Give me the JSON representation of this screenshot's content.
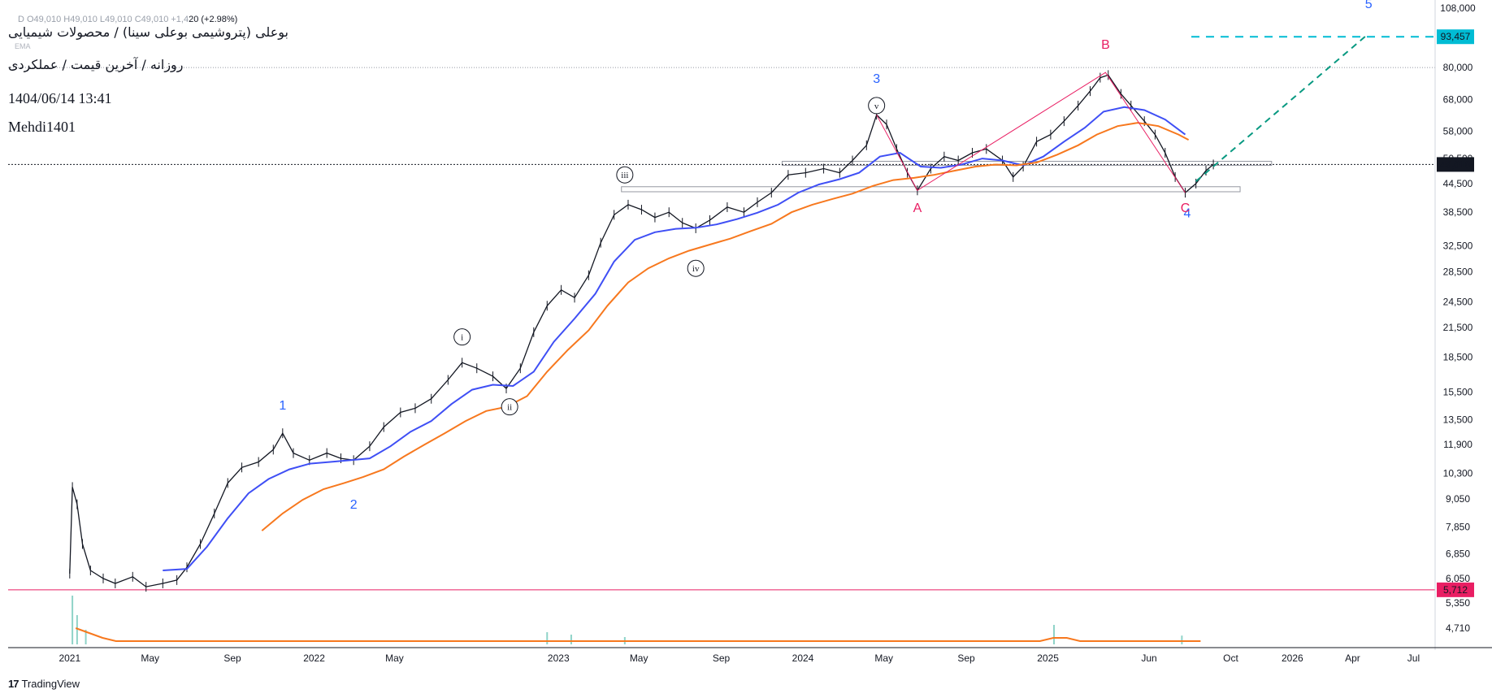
{
  "header": {
    "symbol_title": "بوعلی (پتروشیمی بوعلی سینا) / محصولات شیمیایی",
    "subtitle": "روزانه / آخرین قیمت / عملکردی",
    "ohlc": "D  O49,010  H49,010  L49,010  C49,010  +1,4",
    "change": "20 (+2.98%)",
    "ma_tag": "EMA",
    "timestamp": "1404/06/14 13:41",
    "author": "Mehdi1401"
  },
  "brand": {
    "logo_text": "17",
    "name": "TradingView"
  },
  "colors": {
    "background": "#ffffff",
    "price": "#131722",
    "ema_fast": "#3f4ff5",
    "ema_slow": "#f7781e",
    "wave_blue": "#2962ff",
    "wave_red": "#e91e63",
    "projection": "#089981",
    "target_tag": "#00bcd4",
    "hline_pink": "#e91e63"
  },
  "chart_data": {
    "type": "line",
    "y_scale": "log",
    "ylim": [
      4300,
      108000
    ],
    "price_scale_labels": [
      "108,000",
      "93,457",
      "80,000",
      "68,000",
      "58,000",
      "50,500",
      "49,010",
      "44,500",
      "38,500",
      "32,500",
      "28,500",
      "24,500",
      "21,500",
      "18,500",
      "15,500",
      "13,500",
      "11,900",
      "10,300",
      "9,050",
      "7,850",
      "6,850",
      "6,050",
      "5,712",
      "5,350",
      "4,710"
    ],
    "x_labels": [
      "2021",
      "May",
      "Sep",
      "2022",
      "May",
      "2023",
      "May",
      "Sep",
      "2024",
      "May",
      "Sep",
      "2025",
      "Jun",
      "Oct",
      "2026",
      "Apr",
      "Jul"
    ],
    "current_price": {
      "value": 49010,
      "label": "49,010"
    },
    "target_price": {
      "value": 93457,
      "label": "93,457"
    },
    "support_line": {
      "value": 5712,
      "label": "5,712"
    },
    "series": [
      {
        "name": "",
        "kind": "price",
        "points": [
          [
            "2021-01-01",
            6200
          ],
          [
            "2021-01-05",
            9600
          ],
          [
            "2021-01-12",
            8800
          ],
          [
            "2021-01-20",
            7200
          ],
          [
            "2021-02-01",
            6300
          ],
          [
            "2021-02-20",
            6050
          ],
          [
            "2021-03-10",
            5900
          ],
          [
            "2021-04-05",
            6100
          ],
          [
            "2021-04-25",
            5800
          ],
          [
            "2021-05-20",
            5900
          ],
          [
            "2021-06-10",
            6000
          ],
          [
            "2021-06-25",
            6400
          ],
          [
            "2021-07-15",
            7200
          ],
          [
            "2021-08-05",
            8400
          ],
          [
            "2021-08-25",
            9800
          ],
          [
            "2021-09-15",
            10600
          ],
          [
            "2021-10-10",
            10900
          ],
          [
            "2021-11-01",
            11600
          ],
          [
            "2021-11-15",
            12600
          ],
          [
            "2021-12-01",
            11400
          ],
          [
            "2021-12-25",
            11000
          ],
          [
            "2022-01-20",
            11400
          ],
          [
            "2022-02-10",
            11100
          ],
          [
            "2022-03-01",
            11000
          ],
          [
            "2022-03-25",
            11800
          ],
          [
            "2022-04-15",
            13000
          ],
          [
            "2022-05-10",
            14000
          ],
          [
            "2022-06-01",
            14300
          ],
          [
            "2022-06-25",
            15000
          ],
          [
            "2022-07-20",
            16500
          ],
          [
            "2022-08-10",
            18000
          ],
          [
            "2022-09-01",
            17500
          ],
          [
            "2022-09-25",
            16800
          ],
          [
            "2022-10-15",
            15800
          ],
          [
            "2022-11-05",
            17500
          ],
          [
            "2022-11-25",
            21000
          ],
          [
            "2022-12-15",
            24000
          ],
          [
            "2023-01-05",
            26000
          ],
          [
            "2023-01-25",
            25000
          ],
          [
            "2023-02-15",
            28000
          ],
          [
            "2023-03-05",
            33000
          ],
          [
            "2023-03-25",
            38000
          ],
          [
            "2023-04-15",
            40000
          ],
          [
            "2023-05-05",
            39000
          ],
          [
            "2023-05-25",
            37500
          ],
          [
            "2023-06-15",
            38500
          ],
          [
            "2023-07-05",
            36500
          ],
          [
            "2023-07-25",
            35500
          ],
          [
            "2023-08-15",
            37000
          ],
          [
            "2023-09-10",
            39500
          ],
          [
            "2023-10-05",
            38500
          ],
          [
            "2023-10-25",
            40500
          ],
          [
            "2023-11-15",
            42500
          ],
          [
            "2023-12-10",
            46500
          ],
          [
            "2024-01-05",
            47000
          ],
          [
            "2024-02-01",
            48000
          ],
          [
            "2024-02-25",
            47000
          ],
          [
            "2024-03-15",
            50000
          ],
          [
            "2024-04-05",
            54000
          ],
          [
            "2024-04-20",
            63000
          ],
          [
            "2024-05-05",
            60000
          ],
          [
            "2024-05-20",
            53000
          ],
          [
            "2024-06-05",
            47000
          ],
          [
            "2024-06-20",
            43000
          ],
          [
            "2024-07-10",
            48000
          ],
          [
            "2024-07-30",
            51000
          ],
          [
            "2024-08-20",
            50000
          ],
          [
            "2024-09-10",
            52000
          ],
          [
            "2024-10-01",
            53000
          ],
          [
            "2024-10-25",
            50000
          ],
          [
            "2024-11-10",
            46000
          ],
          [
            "2024-11-25",
            48500
          ],
          [
            "2024-12-15",
            55000
          ],
          [
            "2025-01-05",
            57000
          ],
          [
            "2025-01-25",
            61000
          ],
          [
            "2025-02-15",
            66000
          ],
          [
            "2025-03-05",
            71000
          ],
          [
            "2025-03-20",
            76000
          ],
          [
            "2025-04-01",
            77000
          ],
          [
            "2025-04-20",
            70000
          ],
          [
            "2025-05-05",
            66000
          ],
          [
            "2025-05-25",
            61000
          ],
          [
            "2025-06-10",
            57000
          ],
          [
            "2025-06-25",
            52000
          ],
          [
            "2025-07-10",
            46000
          ],
          [
            "2025-07-25",
            42500
          ],
          [
            "2025-08-10",
            44500
          ],
          [
            "2025-08-25",
            47500
          ],
          [
            "2025-09-05",
            49010
          ]
        ]
      },
      {
        "name": "",
        "kind": "ema_fast",
        "points": [
          [
            "2021-05-20",
            6300
          ],
          [
            "2021-06-25",
            6350
          ],
          [
            "2021-07-25",
            7100
          ],
          [
            "2021-08-25",
            8200
          ],
          [
            "2021-09-25",
            9300
          ],
          [
            "2021-10-25",
            10000
          ],
          [
            "2021-11-25",
            10500
          ],
          [
            "2021-12-25",
            10800
          ],
          [
            "2022-01-25",
            10900
          ],
          [
            "2022-02-25",
            11000
          ],
          [
            "2022-03-25",
            11100
          ],
          [
            "2022-04-25",
            11800
          ],
          [
            "2022-05-25",
            12700
          ],
          [
            "2022-06-25",
            13400
          ],
          [
            "2022-07-25",
            14600
          ],
          [
            "2022-08-25",
            15700
          ],
          [
            "2022-09-25",
            16100
          ],
          [
            "2022-10-25",
            16000
          ],
          [
            "2022-11-25",
            17200
          ],
          [
            "2022-12-25",
            20000
          ],
          [
            "2023-01-25",
            22500
          ],
          [
            "2023-02-25",
            25500
          ],
          [
            "2023-03-25",
            30000
          ],
          [
            "2023-04-25",
            33500
          ],
          [
            "2023-05-25",
            34800
          ],
          [
            "2023-06-25",
            35400
          ],
          [
            "2023-07-25",
            35600
          ],
          [
            "2023-08-25",
            36200
          ],
          [
            "2023-09-25",
            37200
          ],
          [
            "2023-10-25",
            38400
          ],
          [
            "2023-11-25",
            40000
          ],
          [
            "2023-12-25",
            42500
          ],
          [
            "2024-01-25",
            44300
          ],
          [
            "2024-02-25",
            45500
          ],
          [
            "2024-03-25",
            47000
          ],
          [
            "2024-04-25",
            51000
          ],
          [
            "2024-05-25",
            52000
          ],
          [
            "2024-06-25",
            48500
          ],
          [
            "2024-07-25",
            48200
          ],
          [
            "2024-08-25",
            49000
          ],
          [
            "2024-09-25",
            50500
          ],
          [
            "2024-10-25",
            50000
          ],
          [
            "2024-11-25",
            48800
          ],
          [
            "2024-12-25",
            51000
          ],
          [
            "2025-01-25",
            55000
          ],
          [
            "2025-02-25",
            59000
          ],
          [
            "2025-03-25",
            64000
          ],
          [
            "2025-04-25",
            65500
          ],
          [
            "2025-05-25",
            64500
          ],
          [
            "2025-06-25",
            61500
          ],
          [
            "2025-07-25",
            57000
          ]
        ]
      },
      {
        "name": "",
        "kind": "ema_slow",
        "points": [
          [
            "2021-10-15",
            7700
          ],
          [
            "2021-11-15",
            8400
          ],
          [
            "2021-12-15",
            9000
          ],
          [
            "2022-01-15",
            9500
          ],
          [
            "2022-02-15",
            9800
          ],
          [
            "2022-03-15",
            10100
          ],
          [
            "2022-04-15",
            10500
          ],
          [
            "2022-05-15",
            11200
          ],
          [
            "2022-06-15",
            11900
          ],
          [
            "2022-07-15",
            12600
          ],
          [
            "2022-08-15",
            13400
          ],
          [
            "2022-09-15",
            14100
          ],
          [
            "2022-10-15",
            14400
          ],
          [
            "2022-11-15",
            15200
          ],
          [
            "2022-12-15",
            17200
          ],
          [
            "2023-01-15",
            19200
          ],
          [
            "2023-02-15",
            21200
          ],
          [
            "2023-03-15",
            24000
          ],
          [
            "2023-04-15",
            27000
          ],
          [
            "2023-05-15",
            29000
          ],
          [
            "2023-06-15",
            30500
          ],
          [
            "2023-07-15",
            31700
          ],
          [
            "2023-08-15",
            32700
          ],
          [
            "2023-09-15",
            33700
          ],
          [
            "2023-10-15",
            35000
          ],
          [
            "2023-11-15",
            36300
          ],
          [
            "2023-12-15",
            38500
          ],
          [
            "2024-01-15",
            40000
          ],
          [
            "2024-02-15",
            41200
          ],
          [
            "2024-03-15",
            42300
          ],
          [
            "2024-04-15",
            44000
          ],
          [
            "2024-05-15",
            45300
          ],
          [
            "2024-06-15",
            45800
          ],
          [
            "2024-07-15",
            46500
          ],
          [
            "2024-08-15",
            47500
          ],
          [
            "2024-09-15",
            48500
          ],
          [
            "2024-10-15",
            49000
          ],
          [
            "2024-11-15",
            48800
          ],
          [
            "2024-12-15",
            49500
          ],
          [
            "2025-01-15",
            51500
          ],
          [
            "2025-02-15",
            54000
          ],
          [
            "2025-03-15",
            57000
          ],
          [
            "2025-04-15",
            59500
          ],
          [
            "2025-05-15",
            60500
          ],
          [
            "2025-06-15",
            59500
          ],
          [
            "2025-07-15",
            57000
          ],
          [
            "2025-07-30",
            55500
          ]
        ]
      }
    ],
    "wave_labels": [
      {
        "text": "1",
        "x": "2021-11-15",
        "y": 14200,
        "color": "blue"
      },
      {
        "text": "2",
        "x": "2022-03-01",
        "y": 8600,
        "color": "blue"
      },
      {
        "text": "3",
        "x": "2024-04-20",
        "y": 74000,
        "color": "blue"
      },
      {
        "text": "4",
        "x": "2025-07-28",
        "y": 37500,
        "color": "blue"
      },
      {
        "text": "5",
        "x": "2026-04-25",
        "y": 108000,
        "color": "blue"
      },
      {
        "text": "i",
        "x": "2022-08-10",
        "y": 20500,
        "circled": true
      },
      {
        "text": "ii",
        "x": "2022-10-20",
        "y": 14400,
        "circled": true
      },
      {
        "text": "iii",
        "x": "2023-04-10",
        "y": 46500,
        "circled": true
      },
      {
        "text": "iv",
        "x": "2023-07-25",
        "y": 29000,
        "circled": true
      },
      {
        "text": "v",
        "x": "2024-04-20",
        "y": 66000,
        "circled": true
      },
      {
        "text": "A",
        "x": "2024-06-20",
        "y": 38500,
        "color": "red"
      },
      {
        "text": "B",
        "x": "2025-03-28",
        "y": 88000,
        "color": "red"
      },
      {
        "text": "C",
        "x": "2025-07-25",
        "y": 38500,
        "color": "red"
      }
    ],
    "abc_lines": [
      [
        [
          "2024-04-20",
          63000
        ],
        [
          "2024-06-20",
          43000
        ],
        [
          "2025-03-28",
          78000
        ],
        [
          "2025-07-25",
          42500
        ]
      ]
    ],
    "projection": [
      [
        "2025-08-10",
        45000
      ],
      [
        "2026-04-25",
        95000
      ]
    ],
    "zones": [
      {
        "from": "2023-04-05",
        "to": "2025-10-15",
        "low": 42700,
        "high": 43800
      },
      {
        "from": "2023-12-01",
        "to": "2025-12-01",
        "low": 48800,
        "high": 49800
      }
    ],
    "volume": {
      "ema_color": "#f7781e",
      "spikes": [
        [
          "2021-01-05",
          1.0
        ],
        [
          "2021-01-12",
          0.6
        ],
        [
          "2021-01-25",
          0.3
        ],
        [
          "2022-12-15",
          0.25
        ],
        [
          "2023-01-20",
          0.2
        ],
        [
          "2023-04-10",
          0.15
        ],
        [
          "2025-01-10",
          0.4
        ],
        [
          "2025-07-20",
          0.18
        ]
      ]
    },
    "grid": false,
    "title": "",
    "xlabel": "",
    "ylabel": ""
  }
}
